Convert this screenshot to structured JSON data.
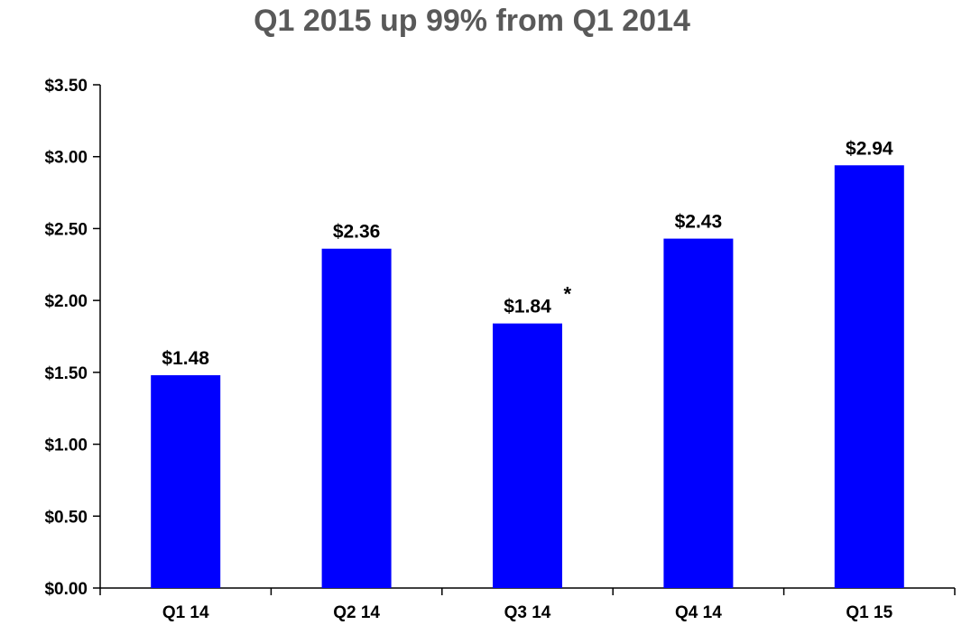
{
  "chart_data": {
    "type": "bar",
    "title": "Q1 2015 up 99% from Q1 2014",
    "xlabel": "",
    "ylabel": "",
    "categories": [
      "Q1 14",
      "Q2 14",
      "Q3 14",
      "Q4 14",
      "Q1 15"
    ],
    "values": [
      1.48,
      2.36,
      1.84,
      2.43,
      2.94
    ],
    "data_labels": [
      "$1.48",
      "$2.36",
      "$1.84",
      "$2.43",
      "$2.94"
    ],
    "footnote_markers": [
      "",
      "",
      "*",
      "",
      ""
    ],
    "ylim": [
      0,
      3.5
    ],
    "yticks": [
      0,
      0.5,
      1.0,
      1.5,
      2.0,
      2.5,
      3.0,
      3.5
    ],
    "ytick_labels": [
      "$0.00",
      "$0.50",
      "$1.00",
      "$1.50",
      "$2.00",
      "$2.50",
      "$3.00",
      "$3.50"
    ],
    "grid": false,
    "legend": "none",
    "bar_color": "#0000FF"
  }
}
